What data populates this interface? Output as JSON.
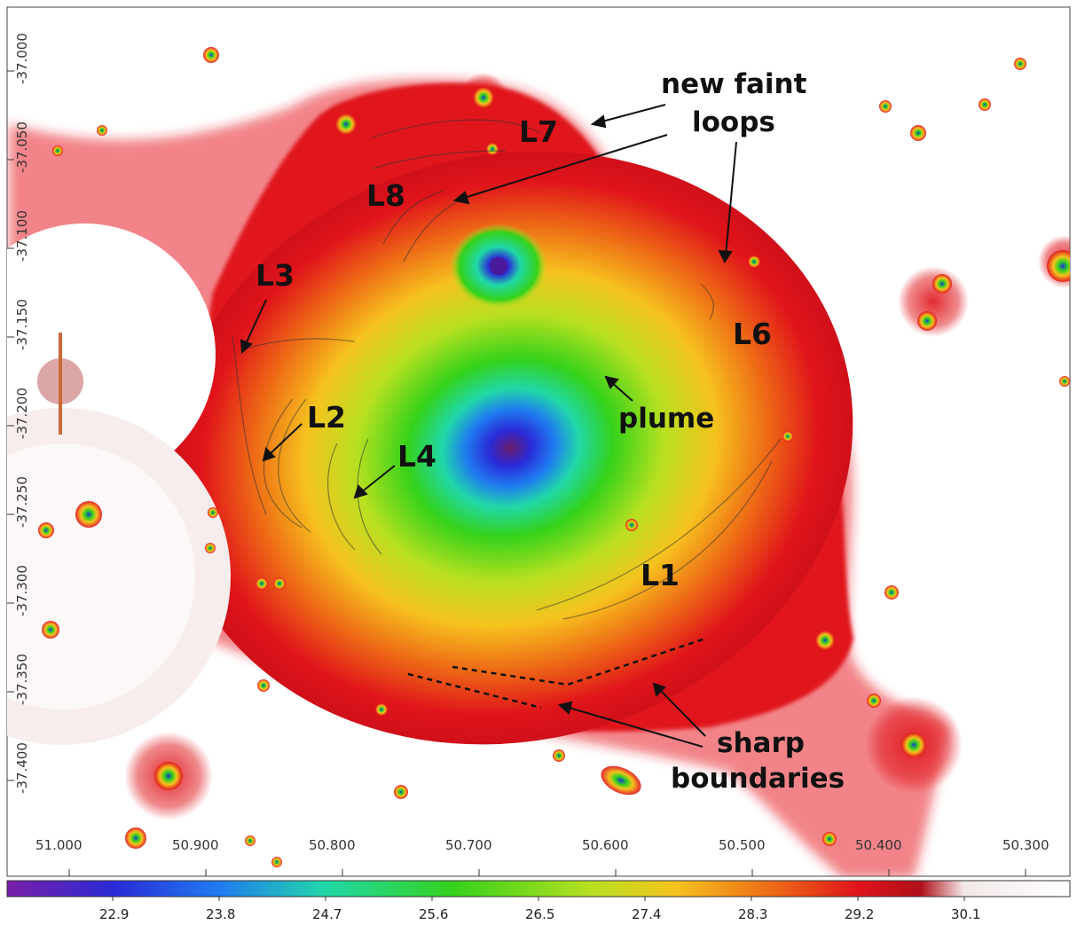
{
  "annotations": {
    "new_faint_loops_line1": "new faint",
    "new_faint_loops_line2": "loops",
    "sharp_line1": "sharp",
    "sharp_line2": "boundaries",
    "plume": "plume",
    "L1": "L1",
    "L2": "L2",
    "L3": "L3",
    "L4": "L4",
    "L6": "L6",
    "L7": "L7",
    "L8": "L8"
  },
  "axes": {
    "ra_ticks": [
      "51.000",
      "50.900",
      "50.800",
      "50.700",
      "50.600",
      "50.500",
      "50.400",
      "50.300"
    ],
    "dec_ticks": [
      "-37.000",
      "-37.050",
      "-37.100",
      "-37.150",
      "-37.200",
      "-37.250",
      "-37.300",
      "-37.350",
      "-37.400"
    ]
  },
  "colorbar": {
    "ticks": [
      "22.9",
      "23.8",
      "24.7",
      "25.6",
      "26.5",
      "27.4",
      "28.3",
      "29.2",
      "30.1"
    ],
    "colors": [
      "#7a1fa8",
      "#2a2ad8",
      "#1f7cf0",
      "#20d8a8",
      "#34d21a",
      "#b8e020",
      "#f6c21e",
      "#ee6a16",
      "#e0141a",
      "#b0101a",
      "#f3e8e8",
      "#ffffff"
    ]
  }
}
